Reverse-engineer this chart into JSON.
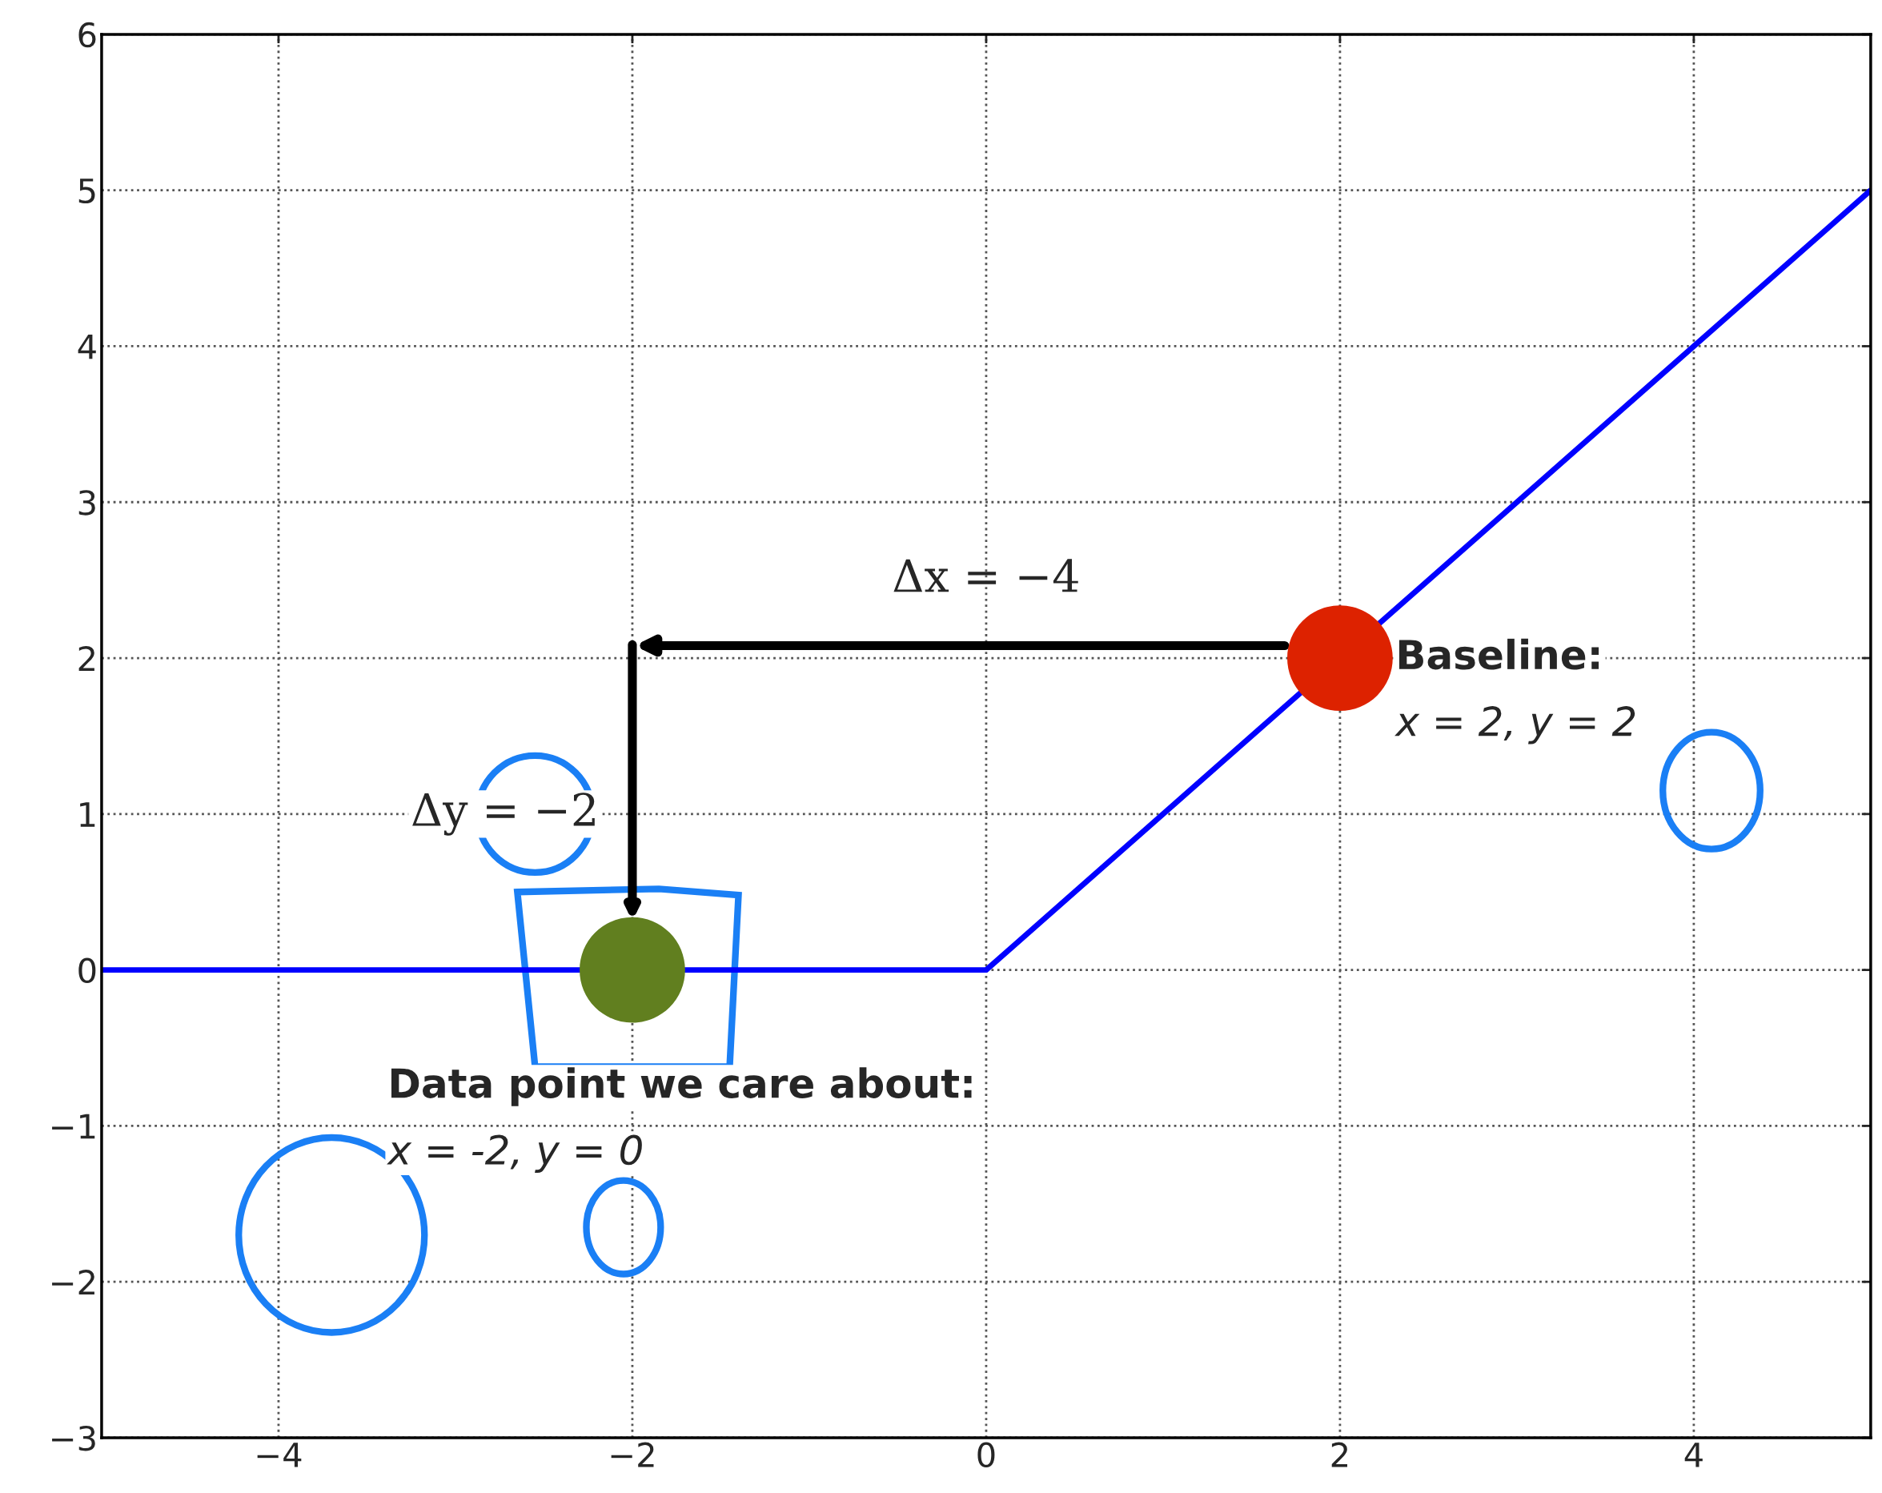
{
  "chart_data": {
    "type": "line",
    "series": [
      {
        "color": "#0000ff",
        "x": [
          -5,
          0,
          5
        ],
        "values": [
          0,
          0,
          5
        ]
      },
      {
        "type": "scatter",
        "color": "#dd2200",
        "x": [
          2
        ],
        "values": [
          2
        ]
      },
      {
        "type": "scatter",
        "color": "#617f1f",
        "x": [
          -2
        ],
        "values": [
          0
        ]
      }
    ],
    "xlim": [
      -5,
      5
    ],
    "ylim": [
      -3,
      6
    ],
    "xticks": [
      {
        "value": -4,
        "label": "−4"
      },
      {
        "value": -2,
        "label": "−2"
      },
      0,
      2,
      4
    ],
    "yticks": [
      {
        "value": -3,
        "label": "−3"
      },
      {
        "value": -2,
        "label": "−2"
      },
      {
        "value": -1,
        "label": "−1"
      },
      0,
      1,
      2,
      3,
      4,
      5,
      6
    ],
    "grid": true,
    "annotations": [
      "Baseline:\nx = 2, y = 2",
      "Data point we care about:\nx = -2, y = 0",
      "Δx = −4",
      "Δy = −2"
    ]
  }
}
